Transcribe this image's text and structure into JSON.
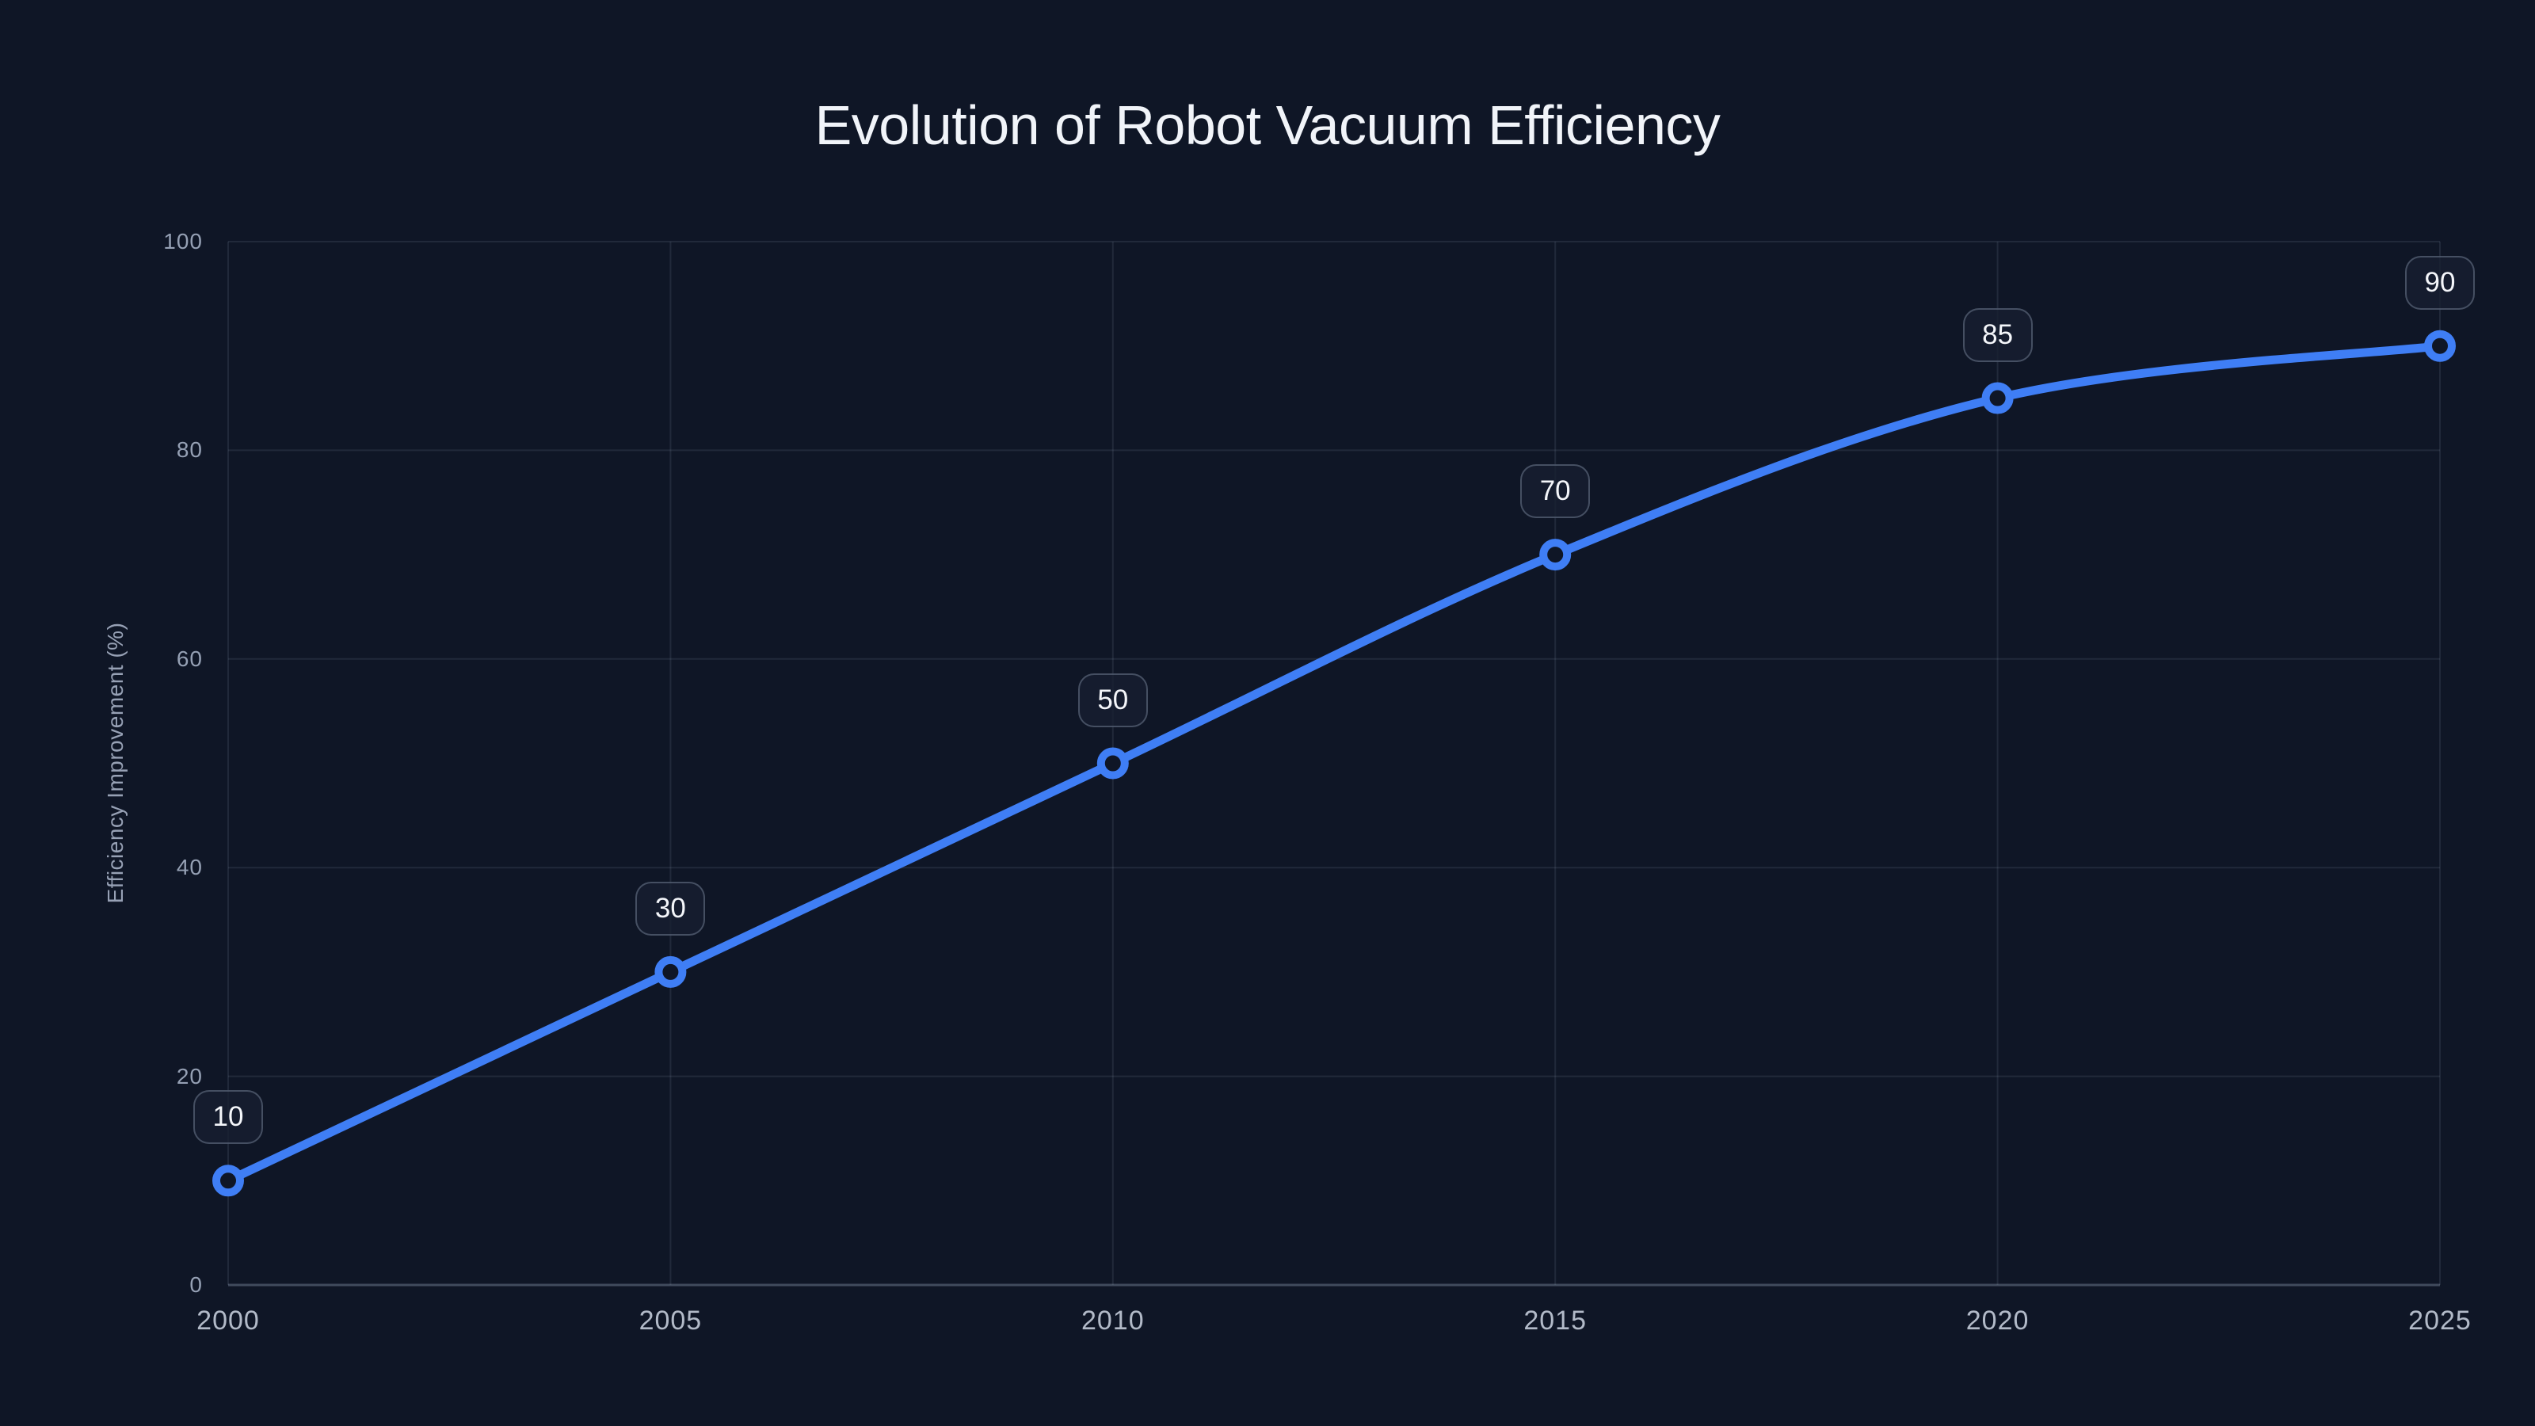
{
  "chart_data": {
    "type": "line",
    "title": "Evolution of Robot Vacuum Efficiency",
    "xlabel": "",
    "ylabel": "Efficiency Improvement (%)",
    "categories": [
      "2000",
      "2005",
      "2010",
      "2015",
      "2020",
      "2025"
    ],
    "values": [
      10,
      30,
      50,
      70,
      85,
      90
    ],
    "point_labels": [
      "10",
      "30",
      "50",
      "70",
      "85",
      "90"
    ],
    "yticks": [
      0,
      20,
      40,
      60,
      80,
      100
    ],
    "ylim": [
      0,
      100
    ],
    "grid": true,
    "legend": "none",
    "line_style": "smooth",
    "marker": "open-circle",
    "colors": {
      "background": "#0f1626",
      "line": "#3f7ef5",
      "marker_stroke": "#3f7ef5",
      "marker_fill": "#0f1626",
      "gridline": "rgba(148,163,184,0.14)",
      "axis_line": "rgba(148,163,184,0.38)",
      "title_text": "#f1f4f9",
      "tick_text": "#95a0b4",
      "badge_text": "#f4f6fa"
    }
  }
}
